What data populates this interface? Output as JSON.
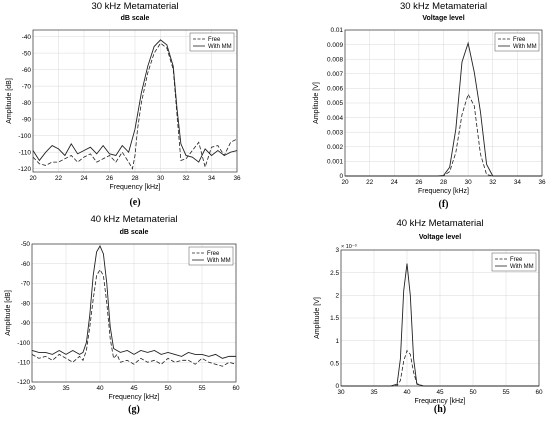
{
  "chart_data": [
    {
      "type": "line",
      "caption": "(e)",
      "title": "30 kHz Metamaterial",
      "subtitle": "dB scale",
      "xlabel": "Frequency [kHz]",
      "ylabel": "Amplitude [dB]",
      "xlim": [
        20,
        36
      ],
      "ylim": [
        -122,
        -36
      ],
      "xticks": [
        20,
        22,
        24,
        26,
        28,
        30,
        32,
        34,
        36
      ],
      "yticks": [
        -40,
        -50,
        -60,
        -70,
        -80,
        -90,
        -100,
        -110,
        -120
      ],
      "legend": "top-right",
      "series": [
        {
          "name": "Free",
          "style": "dashed",
          "x": [
            20,
            20.5,
            21,
            21.5,
            22,
            22.5,
            23,
            23.5,
            24,
            24.5,
            25,
            25.5,
            26,
            26.5,
            27,
            27.5,
            27.8,
            28,
            28.2,
            28.5,
            29,
            29.5,
            30,
            30.5,
            31,
            31.3,
            31.6,
            32,
            32.5,
            33,
            33.5,
            34,
            34.5,
            35,
            35.5,
            36
          ],
          "y": [
            -113,
            -117,
            -118,
            -116,
            -116,
            -114,
            -112,
            -116,
            -113,
            -111,
            -116,
            -114,
            -112,
            -116,
            -110,
            -116,
            -120,
            -112,
            -96,
            -80,
            -62,
            -50,
            -44,
            -47,
            -60,
            -88,
            -115,
            -114,
            -109,
            -104,
            -119,
            -107,
            -106,
            -112,
            -104,
            -102
          ]
        },
        {
          "name": "With MM",
          "style": "solid",
          "x": [
            20,
            20.5,
            21,
            21.5,
            22,
            22.5,
            23,
            23.5,
            24,
            24.5,
            25,
            25.5,
            26,
            26.5,
            27,
            27.5,
            28,
            28.5,
            29,
            29.5,
            30,
            30.5,
            31,
            31.3,
            31.6,
            32,
            32.5,
            33,
            33.5,
            34,
            34.5,
            35,
            35.5,
            36
          ],
          "y": [
            -109,
            -115,
            -110,
            -106,
            -108,
            -112,
            -105,
            -111,
            -109,
            -107,
            -111,
            -106,
            -111,
            -112,
            -106,
            -110,
            -96,
            -74,
            -58,
            -46,
            -42,
            -45,
            -58,
            -84,
            -105,
            -112,
            -113,
            -116,
            -108,
            -112,
            -109,
            -112,
            -110,
            -109
          ]
        }
      ]
    },
    {
      "type": "line",
      "caption": "(f)",
      "title": "30 kHz Metamaterial",
      "subtitle": "Voltage level",
      "xlabel": "Frequency [kHz]",
      "ylabel": "Amplitude [V]",
      "xlim": [
        20,
        36
      ],
      "ylim": [
        0,
        0.01
      ],
      "xticks": [
        20,
        22,
        24,
        26,
        28,
        30,
        32,
        34,
        36
      ],
      "yticks": [
        0,
        0.001,
        0.002,
        0.003,
        0.004,
        0.005,
        0.006,
        0.007,
        0.008,
        0.009,
        0.01
      ],
      "ytick_labels": [
        "0",
        "0.001",
        "0.002",
        "0.003",
        "0.004",
        "0.005",
        "0.006",
        "0.007",
        "0.008",
        "0.009",
        "0.01"
      ],
      "legend": "top-right",
      "series": [
        {
          "name": "Free",
          "style": "dashed",
          "x": [
            20,
            27.5,
            28,
            28.5,
            29,
            29.5,
            30,
            30.5,
            31,
            31.5,
            32,
            36
          ],
          "y": [
            0,
            0,
            2e-05,
            0.0003,
            0.0016,
            0.0042,
            0.0056,
            0.0048,
            0.0015,
            0.0001,
            0,
            0
          ]
        },
        {
          "name": "With MM",
          "style": "solid",
          "x": [
            20,
            27.5,
            28,
            28.5,
            29,
            29.5,
            30,
            30.5,
            31,
            31.5,
            32,
            36
          ],
          "y": [
            0,
            0,
            3e-05,
            0.0006,
            0.0032,
            0.0078,
            0.0091,
            0.0071,
            0.0044,
            0.0008,
            0,
            0
          ]
        }
      ]
    },
    {
      "type": "line",
      "caption": "(g)",
      "title": "40 kHz Metamaterial",
      "subtitle": "dB scale",
      "xlabel": "Frequency [kHz]",
      "ylabel": "Amplitude [dB]",
      "xlim": [
        30,
        60
      ],
      "ylim": [
        -120,
        -50
      ],
      "xticks": [
        30,
        35,
        40,
        45,
        50,
        55,
        60
      ],
      "yticks": [
        -50,
        -60,
        -70,
        -80,
        -90,
        -100,
        -110,
        -120
      ],
      "legend": "top-right",
      "series": [
        {
          "name": "Free",
          "style": "dashed",
          "x": [
            30,
            31,
            32,
            33,
            34,
            35,
            36,
            37,
            37.5,
            38,
            38.5,
            39,
            39.5,
            40,
            40.5,
            41,
            41.5,
            42,
            42.5,
            43,
            44,
            45,
            46,
            47,
            48,
            49,
            50,
            51,
            52,
            53,
            54,
            55,
            56,
            57,
            58,
            59,
            60
          ],
          "y": [
            -106,
            -108,
            -107,
            -109,
            -106,
            -108,
            -110,
            -107,
            -109,
            -104,
            -92,
            -78,
            -66,
            -63,
            -66,
            -80,
            -98,
            -108,
            -106,
            -110,
            -109,
            -111,
            -108,
            -110,
            -109,
            -111,
            -108,
            -110,
            -109,
            -109,
            -111,
            -108,
            -110,
            -111,
            -112,
            -110,
            -111
          ]
        },
        {
          "name": "With MM",
          "style": "solid",
          "x": [
            30,
            31,
            32,
            33,
            34,
            35,
            36,
            37,
            37.5,
            38,
            38.5,
            39,
            39.5,
            40,
            40.5,
            41,
            41.5,
            42,
            42.5,
            43,
            44,
            45,
            46,
            47,
            48,
            49,
            50,
            51,
            52,
            53,
            54,
            55,
            56,
            57,
            58,
            59,
            60
          ],
          "y": [
            -104,
            -105,
            -105,
            -106,
            -104,
            -106,
            -104,
            -106,
            -105,
            -100,
            -86,
            -66,
            -54,
            -51,
            -55,
            -70,
            -92,
            -103,
            -104,
            -105,
            -104,
            -106,
            -104,
            -105,
            -104,
            -106,
            -105,
            -106,
            -107,
            -105,
            -106,
            -106,
            -107,
            -106,
            -108,
            -107,
            -107
          ]
        }
      ]
    },
    {
      "type": "line",
      "caption": "(h)",
      "title": "40 kHz Metamaterial",
      "subtitle": "Voltage level",
      "xlabel": "Frequency [kHz]",
      "ylabel": "Amplitude [V]",
      "xlim": [
        30,
        60
      ],
      "ylim": [
        0,
        0.003
      ],
      "xticks": [
        30,
        35,
        40,
        45,
        50,
        55,
        60
      ],
      "yticks": [
        0,
        0.0005,
        0.001,
        0.0015,
        0.002,
        0.0025,
        0.003
      ],
      "ytick_labels": [
        "0",
        "0.5",
        "1",
        "1.5",
        "2",
        "2.5",
        "3"
      ],
      "y_exponent": "× 10⁻³",
      "legend": "top-right",
      "series": [
        {
          "name": "Free",
          "style": "dashed",
          "x": [
            30,
            37.5,
            38.5,
            39,
            39.5,
            40,
            40.5,
            41,
            41.5,
            42.5,
            60
          ],
          "y": [
            0,
            0,
            1e-05,
            0.00012,
            0.00055,
            0.00078,
            0.0007,
            0.0003,
            5e-05,
            0,
            0
          ]
        },
        {
          "name": "With MM",
          "style": "solid",
          "x": [
            30,
            37.5,
            38.5,
            39,
            39.5,
            40,
            40.5,
            41,
            41.5,
            42.5,
            60
          ],
          "y": [
            0,
            0,
            4e-05,
            0.0006,
            0.0021,
            0.0027,
            0.002,
            0.0006,
            4e-05,
            0,
            0
          ]
        }
      ]
    }
  ]
}
